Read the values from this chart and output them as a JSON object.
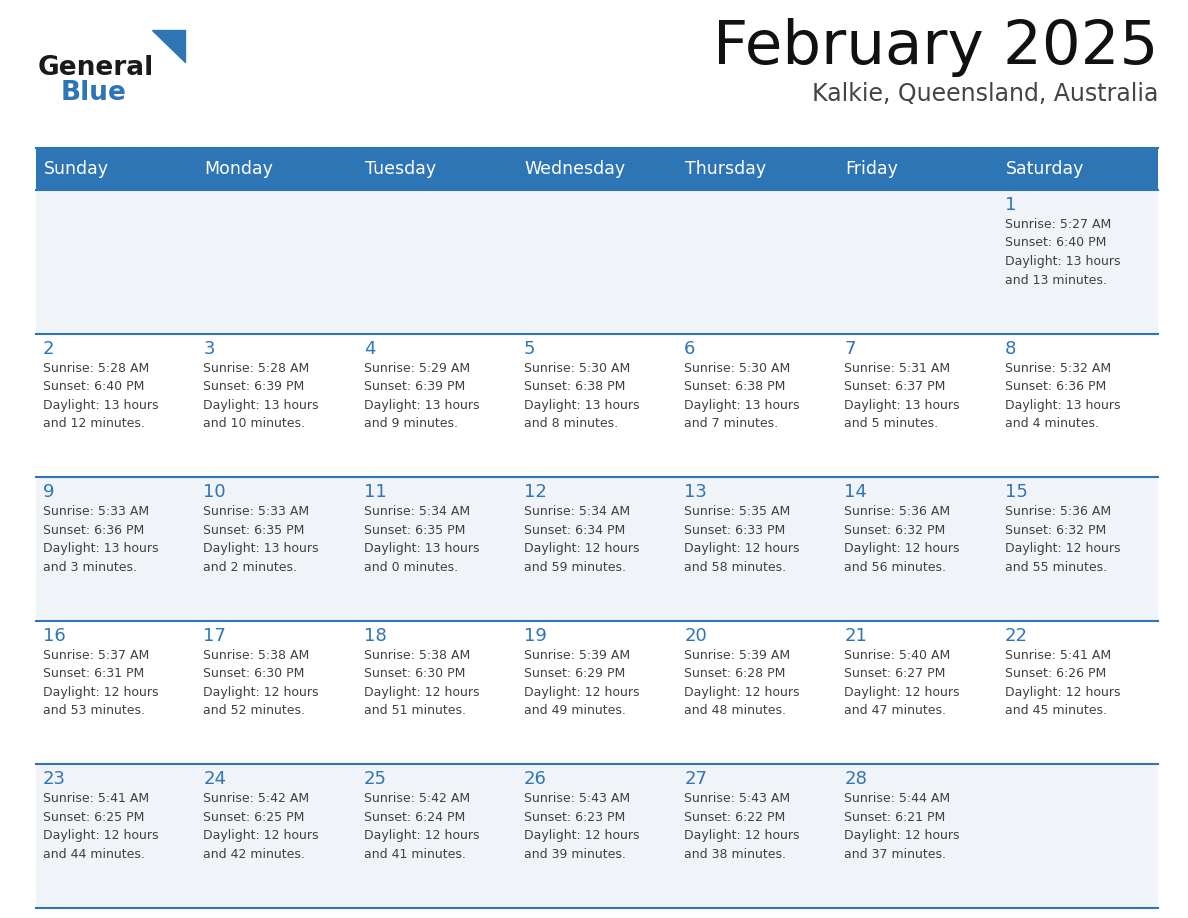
{
  "title": "February 2025",
  "subtitle": "Kalkie, Queensland, Australia",
  "header_bg": "#2E75B6",
  "header_text_color": "#FFFFFF",
  "days_of_week": [
    "Sunday",
    "Monday",
    "Tuesday",
    "Wednesday",
    "Thursday",
    "Friday",
    "Saturday"
  ],
  "row_bg_even": "#F0F4F8",
  "row_bg_odd": "#FFFFFF",
  "cell_text_color": "#404040",
  "day_num_color": "#2E75B6",
  "grid_line_color": "#2E75B6",
  "background_color": "#FFFFFF",
  "weeks": [
    [
      {
        "day": null,
        "info": null
      },
      {
        "day": null,
        "info": null
      },
      {
        "day": null,
        "info": null
      },
      {
        "day": null,
        "info": null
      },
      {
        "day": null,
        "info": null
      },
      {
        "day": null,
        "info": null
      },
      {
        "day": 1,
        "info": "Sunrise: 5:27 AM\nSunset: 6:40 PM\nDaylight: 13 hours\nand 13 minutes."
      }
    ],
    [
      {
        "day": 2,
        "info": "Sunrise: 5:28 AM\nSunset: 6:40 PM\nDaylight: 13 hours\nand 12 minutes."
      },
      {
        "day": 3,
        "info": "Sunrise: 5:28 AM\nSunset: 6:39 PM\nDaylight: 13 hours\nand 10 minutes."
      },
      {
        "day": 4,
        "info": "Sunrise: 5:29 AM\nSunset: 6:39 PM\nDaylight: 13 hours\nand 9 minutes."
      },
      {
        "day": 5,
        "info": "Sunrise: 5:30 AM\nSunset: 6:38 PM\nDaylight: 13 hours\nand 8 minutes."
      },
      {
        "day": 6,
        "info": "Sunrise: 5:30 AM\nSunset: 6:38 PM\nDaylight: 13 hours\nand 7 minutes."
      },
      {
        "day": 7,
        "info": "Sunrise: 5:31 AM\nSunset: 6:37 PM\nDaylight: 13 hours\nand 5 minutes."
      },
      {
        "day": 8,
        "info": "Sunrise: 5:32 AM\nSunset: 6:36 PM\nDaylight: 13 hours\nand 4 minutes."
      }
    ],
    [
      {
        "day": 9,
        "info": "Sunrise: 5:33 AM\nSunset: 6:36 PM\nDaylight: 13 hours\nand 3 minutes."
      },
      {
        "day": 10,
        "info": "Sunrise: 5:33 AM\nSunset: 6:35 PM\nDaylight: 13 hours\nand 2 minutes."
      },
      {
        "day": 11,
        "info": "Sunrise: 5:34 AM\nSunset: 6:35 PM\nDaylight: 13 hours\nand 0 minutes."
      },
      {
        "day": 12,
        "info": "Sunrise: 5:34 AM\nSunset: 6:34 PM\nDaylight: 12 hours\nand 59 minutes."
      },
      {
        "day": 13,
        "info": "Sunrise: 5:35 AM\nSunset: 6:33 PM\nDaylight: 12 hours\nand 58 minutes."
      },
      {
        "day": 14,
        "info": "Sunrise: 5:36 AM\nSunset: 6:32 PM\nDaylight: 12 hours\nand 56 minutes."
      },
      {
        "day": 15,
        "info": "Sunrise: 5:36 AM\nSunset: 6:32 PM\nDaylight: 12 hours\nand 55 minutes."
      }
    ],
    [
      {
        "day": 16,
        "info": "Sunrise: 5:37 AM\nSunset: 6:31 PM\nDaylight: 12 hours\nand 53 minutes."
      },
      {
        "day": 17,
        "info": "Sunrise: 5:38 AM\nSunset: 6:30 PM\nDaylight: 12 hours\nand 52 minutes."
      },
      {
        "day": 18,
        "info": "Sunrise: 5:38 AM\nSunset: 6:30 PM\nDaylight: 12 hours\nand 51 minutes."
      },
      {
        "day": 19,
        "info": "Sunrise: 5:39 AM\nSunset: 6:29 PM\nDaylight: 12 hours\nand 49 minutes."
      },
      {
        "day": 20,
        "info": "Sunrise: 5:39 AM\nSunset: 6:28 PM\nDaylight: 12 hours\nand 48 minutes."
      },
      {
        "day": 21,
        "info": "Sunrise: 5:40 AM\nSunset: 6:27 PM\nDaylight: 12 hours\nand 47 minutes."
      },
      {
        "day": 22,
        "info": "Sunrise: 5:41 AM\nSunset: 6:26 PM\nDaylight: 12 hours\nand 45 minutes."
      }
    ],
    [
      {
        "day": 23,
        "info": "Sunrise: 5:41 AM\nSunset: 6:25 PM\nDaylight: 12 hours\nand 44 minutes."
      },
      {
        "day": 24,
        "info": "Sunrise: 5:42 AM\nSunset: 6:25 PM\nDaylight: 12 hours\nand 42 minutes."
      },
      {
        "day": 25,
        "info": "Sunrise: 5:42 AM\nSunset: 6:24 PM\nDaylight: 12 hours\nand 41 minutes."
      },
      {
        "day": 26,
        "info": "Sunrise: 5:43 AM\nSunset: 6:23 PM\nDaylight: 12 hours\nand 39 minutes."
      },
      {
        "day": 27,
        "info": "Sunrise: 5:43 AM\nSunset: 6:22 PM\nDaylight: 12 hours\nand 38 minutes."
      },
      {
        "day": 28,
        "info": "Sunrise: 5:44 AM\nSunset: 6:21 PM\nDaylight: 12 hours\nand 37 minutes."
      },
      {
        "day": null,
        "info": null
      }
    ]
  ],
  "logo_general_color": "#1a1a1a",
  "logo_blue_color": "#2E75B6"
}
